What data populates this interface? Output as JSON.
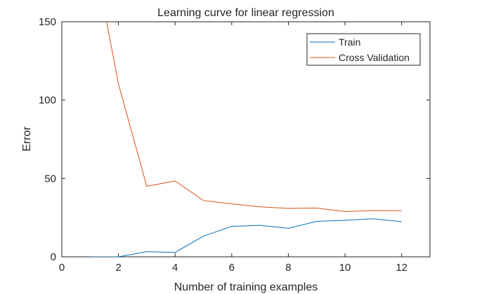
{
  "chart_data": {
    "type": "line",
    "title": "Learning curve for linear regression",
    "xlabel": "Number of training examples",
    "ylabel": "Error",
    "xlim": [
      0,
      13
    ],
    "ylim": [
      0,
      150
    ],
    "xticks": [
      0,
      2,
      4,
      6,
      8,
      10,
      12
    ],
    "yticks": [
      0,
      50,
      100,
      150
    ],
    "grid": false,
    "legend_position": "top-right",
    "series": [
      {
        "name": "Train",
        "color": "#0072BD",
        "x": [
          1,
          2,
          3,
          4,
          5,
          6,
          7,
          8,
          9,
          10,
          11,
          12
        ],
        "values": [
          0.0,
          0.0,
          3.3,
          2.8,
          13.2,
          19.4,
          20.1,
          18.2,
          22.6,
          23.3,
          24.3,
          22.4
        ]
      },
      {
        "name": "Cross Validation",
        "color": "#D95319",
        "x": [
          1,
          2,
          3,
          4,
          5,
          6,
          7,
          8,
          9,
          10,
          11,
          12
        ],
        "values": [
          205.1,
          110.3,
          45.0,
          48.4,
          35.9,
          33.8,
          31.9,
          30.9,
          31.1,
          28.9,
          29.5,
          29.4
        ]
      }
    ]
  }
}
